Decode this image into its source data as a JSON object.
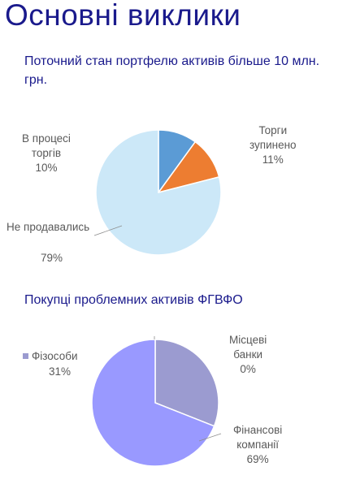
{
  "slide": {
    "title": "Основні виклики"
  },
  "chart_data": [
    {
      "type": "pie",
      "title": "Поточний стан портфелю активів більше 10 млн. грн.",
      "categories": [
        "В процесі торгів",
        "Торги зупинено",
        "Не продавались"
      ],
      "values": [
        10,
        11,
        79
      ],
      "value_labels": [
        "10%",
        "11%",
        "79%"
      ],
      "colors": [
        "#5b9bd5",
        "#ed7d31",
        "#cce8f8"
      ],
      "labels_text": {
        "in_progress": [
          "В процесі",
          "торгів"
        ],
        "stopped": [
          "Торги",
          "зупинено"
        ],
        "never_sold": [
          "Не продавались"
        ]
      }
    },
    {
      "type": "pie",
      "title": "Покупці проблемних активів ФГВФО",
      "categories": [
        "Фізособи",
        "Місцеві банки",
        "Фінансові компанії"
      ],
      "values": [
        31,
        0,
        69
      ],
      "value_labels": [
        "31%",
        "0%",
        "69%"
      ],
      "colors": [
        "#9b9bd0",
        "#8a8ad0",
        "#9999ff"
      ],
      "labels_text": {
        "individuals": [
          "Фізособи"
        ],
        "local_banks": [
          "Місцеві",
          "банки"
        ],
        "financial": [
          "Фінансові",
          "компанії"
        ]
      }
    }
  ]
}
